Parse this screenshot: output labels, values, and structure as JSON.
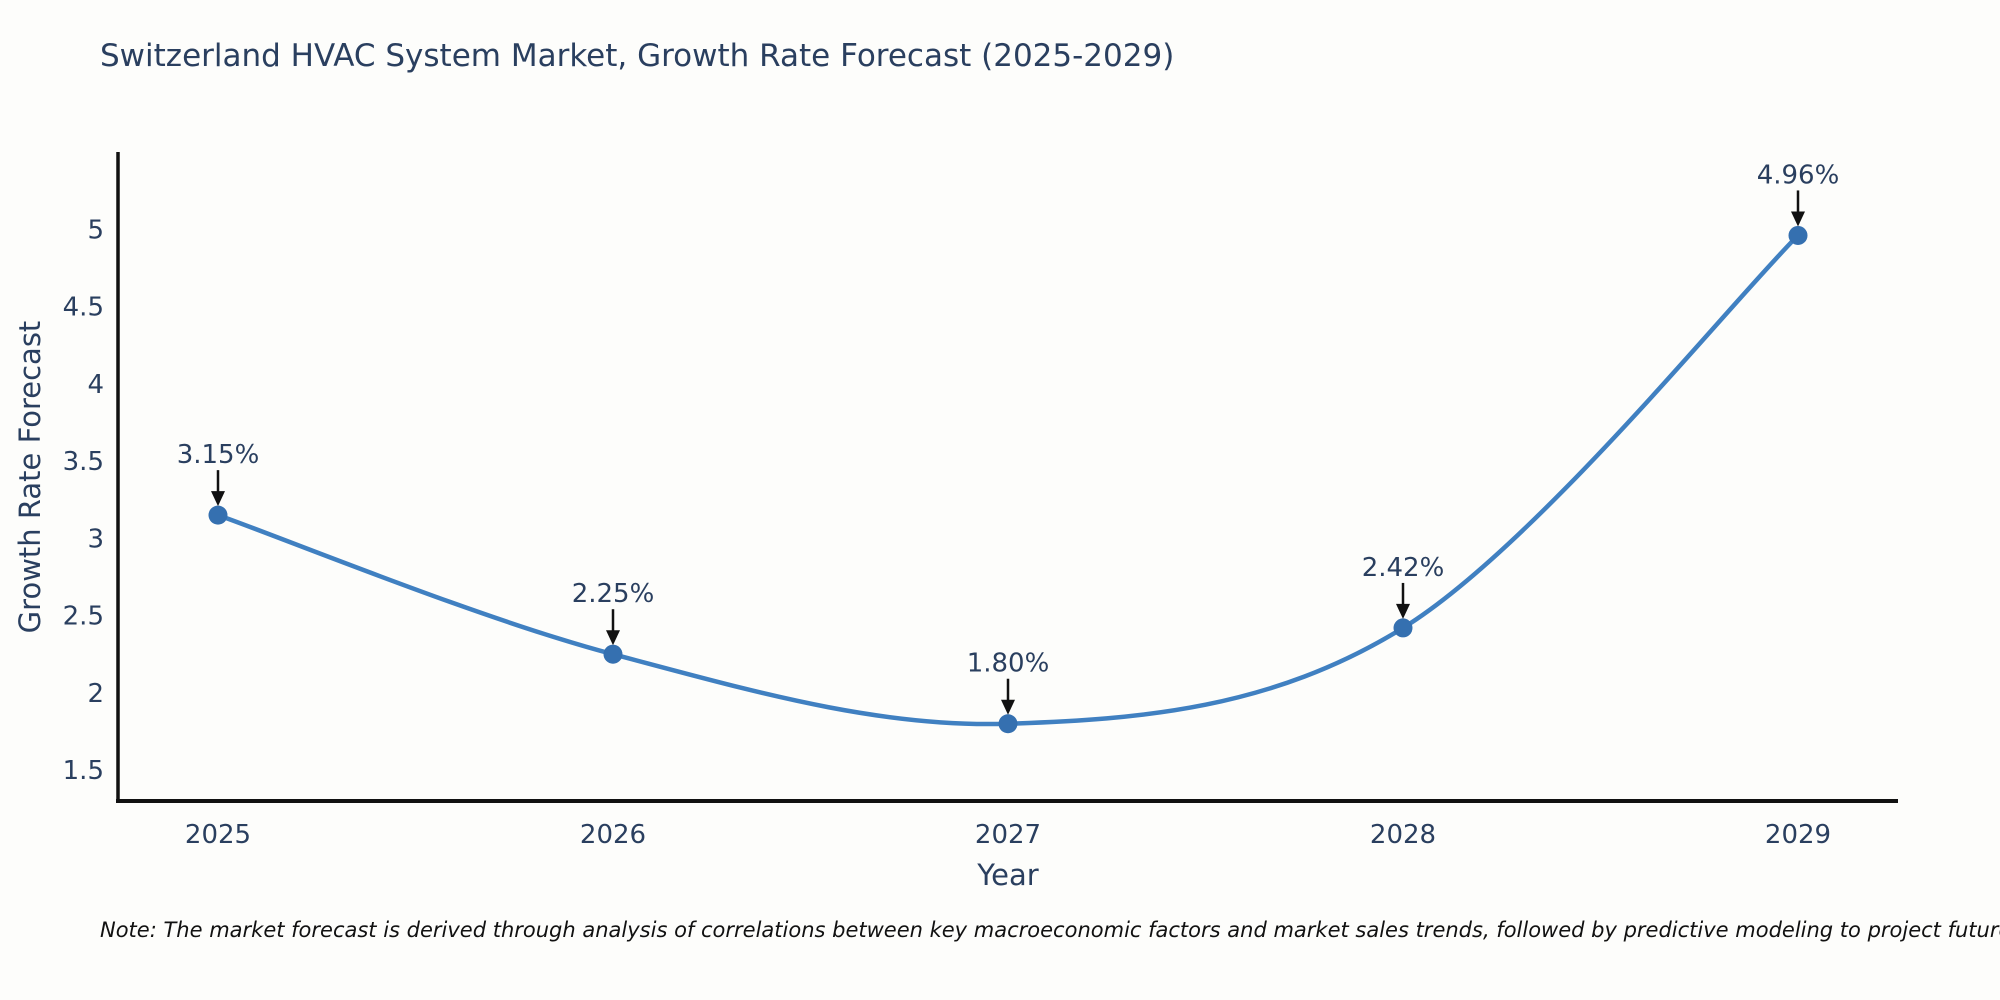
{
  "title": "Switzerland HVAC System Market, Growth Rate Forecast (2025-2029)",
  "note": "Note: The market forecast is derived through analysis of correlations between key macroeconomic factors and market sales trends, followed by predictive modeling to project future sales",
  "chart_data": {
    "type": "line",
    "title": "Switzerland HVAC System Market, Growth Rate Forecast (2025-2029)",
    "x": [
      "2025",
      "2026",
      "2027",
      "2028",
      "2029"
    ],
    "series": [
      {
        "name": "Growth Rate Forecast",
        "values": [
          3.15,
          2.25,
          1.8,
          2.42,
          4.96
        ]
      }
    ],
    "point_labels": [
      "3.15%",
      "2.25%",
      "1.80%",
      "2.42%",
      "4.96%"
    ],
    "xlabel": "Year",
    "ylabel": "Growth Rate Forecast",
    "ylim": [
      1.3,
      5.5
    ],
    "yticks": [
      5,
      4.5,
      4,
      3.5,
      3,
      2.5,
      2,
      1.5
    ],
    "line_shape": "spline",
    "grid": false,
    "legend": "none",
    "colors": {
      "line": "#4080c1",
      "marker": "#3570b0",
      "axis": "#111111",
      "arrow": "#111111",
      "text": "#2a3f5f"
    }
  }
}
